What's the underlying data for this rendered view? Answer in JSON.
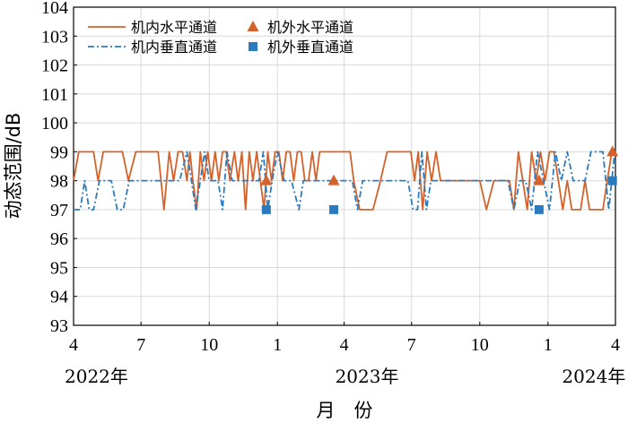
{
  "chart_data": {
    "type": "line",
    "title": "",
    "xlabel": "月　份",
    "ylabel": "动态范围/dB",
    "ylim": [
      93,
      104
    ],
    "yticks": [
      93,
      94,
      95,
      96,
      97,
      98,
      99,
      100,
      101,
      102,
      103,
      104
    ],
    "xlim": [
      "2022-04",
      "2024-04"
    ],
    "xticks": [
      {
        "month": "2022-04",
        "label": "4"
      },
      {
        "month": "2022-07",
        "label": "7"
      },
      {
        "month": "2022-10",
        "label": "10"
      },
      {
        "month": "2023-01",
        "label": "1"
      },
      {
        "month": "2023-04",
        "label": "4"
      },
      {
        "month": "2023-07",
        "label": "7"
      },
      {
        "month": "2023-10",
        "label": "10"
      },
      {
        "month": "2024-01",
        "label": "1"
      },
      {
        "month": "2024-04",
        "label": "4"
      }
    ],
    "year_labels": [
      {
        "month": "2022-04",
        "label": "2022年"
      },
      {
        "month": "2023-04",
        "label": "2023年"
      },
      {
        "month": "2024-02",
        "label": "2024年"
      }
    ],
    "grid": true,
    "legend": "top-left",
    "colors": {
      "orange": "#d4622a",
      "blue": "#2b7bbf"
    },
    "series": [
      {
        "name": "机内水平通道",
        "kind": "line",
        "color": "#d4622a",
        "x": [
          "2022-04-01",
          "2022-04-08",
          "2022-04-14",
          "2022-04-21",
          "2022-04-28",
          "2022-05-04",
          "2022-05-11",
          "2022-05-20",
          "2022-05-29",
          "2022-06-06",
          "2022-06-14",
          "2022-06-24",
          "2022-07-04",
          "2022-07-14",
          "2022-07-24",
          "2022-08-01",
          "2022-08-08",
          "2022-08-14",
          "2022-08-20",
          "2022-08-26",
          "2022-09-01",
          "2022-09-05",
          "2022-09-09",
          "2022-09-14",
          "2022-09-19",
          "2022-09-24",
          "2022-09-29",
          "2022-10-04",
          "2022-10-09",
          "2022-10-14",
          "2022-10-19",
          "2022-10-24",
          "2022-10-29",
          "2022-11-04",
          "2022-11-09",
          "2022-11-14",
          "2022-11-19",
          "2022-11-24",
          "2022-11-29",
          "2022-12-04",
          "2022-12-09",
          "2022-12-14",
          "2022-12-19",
          "2022-12-24",
          "2022-12-29",
          "2023-01-03",
          "2023-01-08",
          "2023-01-13",
          "2023-01-18",
          "2023-01-23",
          "2023-01-28",
          "2023-02-02",
          "2023-02-07",
          "2023-02-12",
          "2023-02-17",
          "2023-02-22",
          "2023-02-27",
          "2023-03-04",
          "2023-03-09",
          "2023-03-14",
          "2023-03-24",
          "2023-04-04",
          "2023-04-09",
          "2023-04-14",
          "2023-04-22",
          "2023-05-01",
          "2023-05-10",
          "2023-05-20",
          "2023-05-29",
          "2023-06-06",
          "2023-06-14",
          "2023-06-22",
          "2023-06-30",
          "2023-07-05",
          "2023-07-10",
          "2023-07-16",
          "2023-07-22",
          "2023-07-28",
          "2023-08-03",
          "2023-08-09",
          "2023-08-16",
          "2023-08-24",
          "2023-09-01",
          "2023-09-09",
          "2023-09-20",
          "2023-10-01",
          "2023-10-10",
          "2023-10-20",
          "2023-10-28",
          "2023-11-04",
          "2023-11-10",
          "2023-11-16",
          "2023-11-22",
          "2023-11-28",
          "2023-12-04",
          "2023-12-10",
          "2023-12-16",
          "2023-12-22",
          "2023-12-28",
          "2024-01-03",
          "2024-01-09",
          "2024-01-15",
          "2024-01-21",
          "2024-01-27",
          "2024-02-02",
          "2024-02-08",
          "2024-02-14",
          "2024-02-20",
          "2024-02-26",
          "2024-03-03",
          "2024-03-09",
          "2024-03-15",
          "2024-03-21",
          "2024-03-27",
          "2024-04-02"
        ],
        "y": [
          98,
          99,
          99,
          99,
          99,
          98,
          99,
          99,
          99,
          99,
          98,
          99,
          99,
          99,
          99,
          97,
          99,
          98,
          99,
          99,
          98,
          99,
          98,
          97,
          99,
          98,
          99,
          98,
          99,
          98,
          99,
          99,
          98,
          99,
          98,
          99,
          97,
          99,
          98,
          99,
          98,
          97,
          99,
          98,
          99,
          99,
          98,
          99,
          99,
          98,
          99,
          99,
          98,
          98,
          99,
          98,
          99,
          99,
          99,
          99,
          99,
          99,
          99,
          98,
          97,
          97,
          97,
          98,
          99,
          99,
          99,
          99,
          99,
          98,
          99,
          97,
          99,
          98,
          99,
          98,
          98,
          98,
          98,
          98,
          98,
          98,
          97,
          98,
          98,
          98,
          98,
          97,
          99,
          98,
          97,
          99,
          98,
          99,
          98,
          99,
          99,
          98,
          97,
          98,
          97,
          97,
          97,
          98,
          97,
          97,
          97,
          97,
          98,
          99,
          99
        ]
      },
      {
        "name": "机内垂直通道",
        "kind": "line",
        "color": "#2b7bbf",
        "x": [
          "2022-04-01",
          "2022-04-10",
          "2022-04-16",
          "2022-04-22",
          "2022-04-28",
          "2022-05-06",
          "2022-05-14",
          "2022-05-22",
          "2022-05-30",
          "2022-06-07",
          "2022-06-15",
          "2022-06-23",
          "2022-07-01",
          "2022-07-10",
          "2022-07-20",
          "2022-08-01",
          "2022-08-12",
          "2022-08-22",
          "2022-09-01",
          "2022-09-07",
          "2022-09-13",
          "2022-09-19",
          "2022-09-25",
          "2022-10-01",
          "2022-10-07",
          "2022-10-13",
          "2022-10-19",
          "2022-10-25",
          "2022-11-01",
          "2022-11-07",
          "2022-11-13",
          "2022-11-19",
          "2022-11-25",
          "2022-12-01",
          "2022-12-07",
          "2022-12-13",
          "2022-12-19",
          "2022-12-25",
          "2023-01-01",
          "2023-01-10",
          "2023-01-20",
          "2023-01-30",
          "2023-02-05",
          "2023-02-12",
          "2023-02-19",
          "2023-02-26",
          "2023-03-05",
          "2023-03-12",
          "2023-03-20",
          "2023-03-28",
          "2023-04-05",
          "2023-04-12",
          "2023-04-19",
          "2023-04-26",
          "2023-05-05",
          "2023-05-14",
          "2023-05-23",
          "2023-06-01",
          "2023-06-10",
          "2023-06-18",
          "2023-06-26",
          "2023-07-03",
          "2023-07-09",
          "2023-07-15",
          "2023-07-21",
          "2023-07-27",
          "2023-08-03",
          "2023-08-12",
          "2023-08-22",
          "2023-09-01",
          "2023-09-15",
          "2023-10-01",
          "2023-10-15",
          "2023-10-29",
          "2023-11-08",
          "2023-11-16",
          "2023-11-24",
          "2023-12-02",
          "2023-12-10",
          "2023-12-18",
          "2023-12-26",
          "2024-01-03",
          "2024-01-11",
          "2024-01-19",
          "2024-01-27",
          "2024-02-04",
          "2024-02-12",
          "2024-02-20",
          "2024-02-28",
          "2024-03-07",
          "2024-03-15",
          "2024-03-23",
          "2024-03-31"
        ],
        "y": [
          97,
          97,
          98,
          97,
          97,
          98,
          98,
          98,
          97,
          97,
          98,
          98,
          98,
          98,
          98,
          98,
          98,
          98,
          99,
          98,
          97,
          98,
          99,
          98,
          98,
          98,
          97,
          99,
          98,
          98,
          98,
          98,
          98,
          98,
          98,
          99,
          97,
          98,
          99,
          98,
          98,
          97,
          98,
          98,
          98,
          98,
          98,
          98,
          98,
          98,
          98,
          98,
          97,
          98,
          98,
          98,
          98,
          98,
          98,
          98,
          98,
          97,
          97,
          99,
          97,
          98,
          98,
          98,
          98,
          98,
          98,
          98,
          98,
          98,
          98,
          97,
          98,
          98,
          97,
          99,
          98,
          97,
          99,
          98,
          99,
          98,
          98,
          98,
          99,
          99,
          99,
          97,
          99
        ]
      },
      {
        "name": "机外水平通道",
        "kind": "marker",
        "marker": "triangle",
        "color": "#d4622a",
        "x": [
          "2022-12-17",
          "2023-03-18",
          "2023-12-20",
          "2024-03-28"
        ],
        "y": [
          98,
          98,
          98,
          99
        ]
      },
      {
        "name": "机外垂直通道",
        "kind": "marker",
        "marker": "square",
        "color": "#2b7bbf",
        "x": [
          "2022-12-17",
          "2023-03-18",
          "2023-12-20",
          "2024-03-28"
        ],
        "y": [
          97,
          97,
          97,
          98
        ]
      }
    ]
  }
}
